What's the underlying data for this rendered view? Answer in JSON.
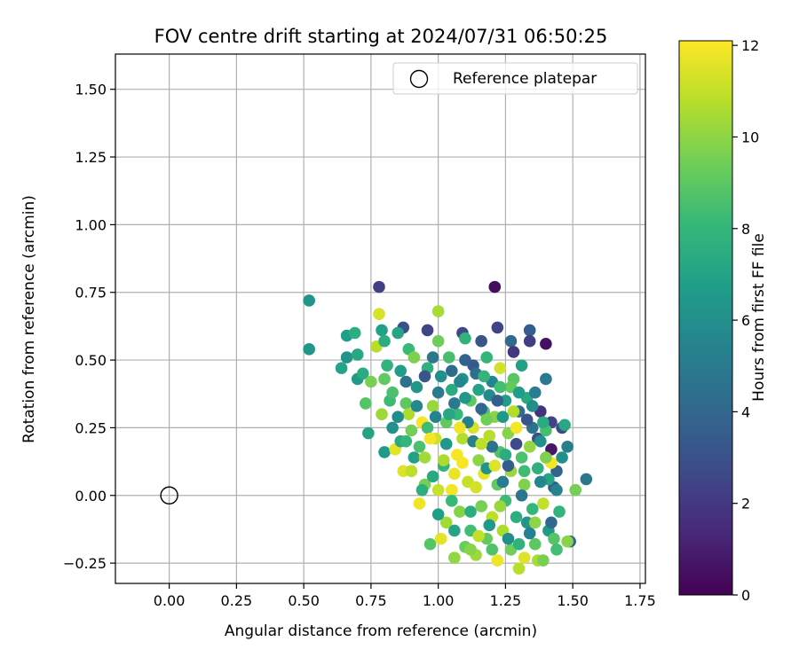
{
  "chart_data": {
    "type": "scatter",
    "title": "FOV centre drift starting at 2024/07/31 06:50:25",
    "xlabel": "Angular distance from reference (arcmin)",
    "ylabel": "Rotation from reference (arcmin)",
    "xlim": [
      -0.2,
      1.77
    ],
    "ylim": [
      -0.325,
      1.63
    ],
    "xticks": [
      "0.00",
      "0.25",
      "0.50",
      "0.75",
      "1.00",
      "1.25",
      "1.50",
      "1.75"
    ],
    "xtick_values": [
      0,
      0.25,
      0.5,
      0.75,
      1.0,
      1.25,
      1.5,
      1.75
    ],
    "yticks": [
      "−0.25",
      "0.00",
      "0.25",
      "0.50",
      "0.75",
      "1.00",
      "1.25",
      "1.50"
    ],
    "ytick_values": [
      -0.25,
      0,
      0.25,
      0.5,
      0.75,
      1.0,
      1.25,
      1.5
    ],
    "grid": true,
    "legend_position": "top-right",
    "reference_point": {
      "label": "Reference platepar",
      "x": 0.0,
      "y": 0.0
    },
    "colorbar": {
      "label": "Hours from first FF file",
      "colormap": "viridis",
      "range": [
        0,
        12.1
      ],
      "ticks": [
        "0",
        "2",
        "4",
        "6",
        "8",
        "10",
        "12"
      ],
      "tick_values": [
        0,
        2,
        4,
        6,
        8,
        10,
        12
      ]
    },
    "points": [
      {
        "x": 0.52,
        "y": 0.72,
        "h": 6.3
      },
      {
        "x": 0.52,
        "y": 0.54,
        "h": 6.4
      },
      {
        "x": 0.78,
        "y": 0.77,
        "h": 2.3
      },
      {
        "x": 1.21,
        "y": 0.77,
        "h": 0.4
      },
      {
        "x": 1.4,
        "y": 0.56,
        "h": 0.5
      },
      {
        "x": 1.42,
        "y": 0.17,
        "h": 0.8
      },
      {
        "x": 0.87,
        "y": 0.62,
        "h": 3.0
      },
      {
        "x": 0.96,
        "y": 0.61,
        "h": 2.5
      },
      {
        "x": 1.09,
        "y": 0.6,
        "h": 2.8
      },
      {
        "x": 1.16,
        "y": 0.57,
        "h": 3.2
      },
      {
        "x": 1.22,
        "y": 0.62,
        "h": 2.4
      },
      {
        "x": 1.34,
        "y": 0.61,
        "h": 3.6
      },
      {
        "x": 1.34,
        "y": 0.57,
        "h": 2.2
      },
      {
        "x": 1.27,
        "y": 0.57,
        "h": 4.2
      },
      {
        "x": 1.28,
        "y": 0.53,
        "h": 1.9
      },
      {
        "x": 1.4,
        "y": 0.43,
        "h": 4.9
      },
      {
        "x": 1.38,
        "y": 0.31,
        "h": 1.7
      },
      {
        "x": 1.42,
        "y": 0.27,
        "h": 2.4
      },
      {
        "x": 1.46,
        "y": 0.25,
        "h": 2.6
      },
      {
        "x": 1.55,
        "y": 0.06,
        "h": 4.8
      },
      {
        "x": 1.49,
        "y": -0.17,
        "h": 3.9
      },
      {
        "x": 1.43,
        "y": 0.03,
        "h": 3.5
      },
      {
        "x": 1.44,
        "y": 0.09,
        "h": 3.8
      },
      {
        "x": 1.37,
        "y": 0.21,
        "h": 2.9
      },
      {
        "x": 0.64,
        "y": 0.47,
        "h": 7.0
      },
      {
        "x": 0.66,
        "y": 0.59,
        "h": 6.8
      },
      {
        "x": 0.66,
        "y": 0.51,
        "h": 6.2
      },
      {
        "x": 0.69,
        "y": 0.6,
        "h": 7.6
      },
      {
        "x": 0.7,
        "y": 0.52,
        "h": 7.2
      },
      {
        "x": 0.7,
        "y": 0.43,
        "h": 6.6
      },
      {
        "x": 0.72,
        "y": 0.45,
        "h": 7.4
      },
      {
        "x": 0.73,
        "y": 0.34,
        "h": 8.8
      },
      {
        "x": 0.74,
        "y": 0.23,
        "h": 7.0
      },
      {
        "x": 0.75,
        "y": 0.42,
        "h": 9.6
      },
      {
        "x": 0.77,
        "y": 0.55,
        "h": 10.8
      },
      {
        "x": 0.78,
        "y": 0.67,
        "h": 11.4
      },
      {
        "x": 0.79,
        "y": 0.61,
        "h": 6.9
      },
      {
        "x": 0.8,
        "y": 0.57,
        "h": 7.5
      },
      {
        "x": 0.79,
        "y": 0.3,
        "h": 10.3
      },
      {
        "x": 0.8,
        "y": 0.16,
        "h": 6.5
      },
      {
        "x": 0.81,
        "y": 0.48,
        "h": 7.8
      },
      {
        "x": 0.82,
        "y": 0.35,
        "h": 8.2
      },
      {
        "x": 0.83,
        "y": 0.25,
        "h": 6.1
      },
      {
        "x": 0.84,
        "y": 0.17,
        "h": 11.6
      },
      {
        "x": 0.85,
        "y": 0.6,
        "h": 7.1
      },
      {
        "x": 0.86,
        "y": 0.46,
        "h": 6.7
      },
      {
        "x": 0.86,
        "y": 0.2,
        "h": 7.3
      },
      {
        "x": 0.87,
        "y": 0.09,
        "h": 11.5
      },
      {
        "x": 0.88,
        "y": 0.34,
        "h": 9.0
      },
      {
        "x": 0.89,
        "y": 0.3,
        "h": 10.6
      },
      {
        "x": 0.89,
        "y": 0.54,
        "h": 8.2
      },
      {
        "x": 0.9,
        "y": 0.09,
        "h": 10.9
      },
      {
        "x": 0.91,
        "y": 0.51,
        "h": 9.7
      },
      {
        "x": 0.92,
        "y": 0.4,
        "h": 6.4
      },
      {
        "x": 0.93,
        "y": 0.18,
        "h": 8.6
      },
      {
        "x": 0.93,
        "y": -0.03,
        "h": 11.8
      },
      {
        "x": 0.94,
        "y": 0.27,
        "h": 12.0
      },
      {
        "x": 0.95,
        "y": 0.04,
        "h": 9.5
      },
      {
        "x": 0.96,
        "y": 0.47,
        "h": 7.7
      },
      {
        "x": 0.96,
        "y": 0.25,
        "h": 8.3
      },
      {
        "x": 0.97,
        "y": -0.18,
        "h": 8.9
      },
      {
        "x": 0.98,
        "y": 0.33,
        "h": 10.2
      },
      {
        "x": 0.99,
        "y": 0.21,
        "h": 11.2
      },
      {
        "x": 1.0,
        "y": 0.68,
        "h": 10.5
      },
      {
        "x": 1.0,
        "y": 0.57,
        "h": 9.4
      },
      {
        "x": 1.01,
        "y": 0.44,
        "h": 6.0
      },
      {
        "x": 1.01,
        "y": -0.16,
        "h": 11.6
      },
      {
        "x": 1.02,
        "y": 0.11,
        "h": 7.9
      },
      {
        "x": 1.03,
        "y": 0.27,
        "h": 9.1
      },
      {
        "x": 1.03,
        "y": -0.1,
        "h": 10.4
      },
      {
        "x": 1.04,
        "y": 0.51,
        "h": 8.5
      },
      {
        "x": 1.05,
        "y": 0.39,
        "h": 7.4
      },
      {
        "x": 1.05,
        "y": 0.02,
        "h": 11.9
      },
      {
        "x": 1.06,
        "y": -0.23,
        "h": 10.1
      },
      {
        "x": 1.07,
        "y": 0.3,
        "h": 8.1
      },
      {
        "x": 1.07,
        "y": 0.15,
        "h": 12.0
      },
      {
        "x": 1.08,
        "y": -0.06,
        "h": 9.8
      },
      {
        "x": 1.09,
        "y": 0.43,
        "h": 6.2
      },
      {
        "x": 1.09,
        "y": 0.21,
        "h": 10.7
      },
      {
        "x": 1.1,
        "y": 0.58,
        "h": 7.8
      },
      {
        "x": 1.1,
        "y": -0.19,
        "h": 9.3
      },
      {
        "x": 1.11,
        "y": 0.05,
        "h": 11.1
      },
      {
        "x": 1.12,
        "y": 0.35,
        "h": 9.0
      },
      {
        "x": 1.12,
        "y": -0.13,
        "h": 8.4
      },
      {
        "x": 1.13,
        "y": 0.25,
        "h": 11.4
      },
      {
        "x": 1.13,
        "y": 0.48,
        "h": 3.4
      },
      {
        "x": 1.14,
        "y": -0.22,
        "h": 10.3
      },
      {
        "x": 1.15,
        "y": 0.13,
        "h": 10.0
      },
      {
        "x": 1.15,
        "y": 0.39,
        "h": 7.0
      },
      {
        "x": 1.16,
        "y": -0.04,
        "h": 9.6
      },
      {
        "x": 1.17,
        "y": 0.31,
        "h": 8.8
      },
      {
        "x": 1.17,
        "y": 0.08,
        "h": 11.7
      },
      {
        "x": 1.18,
        "y": 0.51,
        "h": 8.0
      },
      {
        "x": 1.18,
        "y": -0.16,
        "h": 9.2
      },
      {
        "x": 1.19,
        "y": 0.22,
        "h": 10.8
      },
      {
        "x": 1.2,
        "y": 0.42,
        "h": 5.5
      },
      {
        "x": 1.2,
        "y": -0.08,
        "h": 10.9
      },
      {
        "x": 1.21,
        "y": 0.29,
        "h": 9.9
      },
      {
        "x": 1.22,
        "y": -0.24,
        "h": 11.8
      },
      {
        "x": 1.22,
        "y": 0.04,
        "h": 9.1
      },
      {
        "x": 1.23,
        "y": 0.47,
        "h": 11.3
      },
      {
        "x": 1.23,
        "y": 0.16,
        "h": 8.7
      },
      {
        "x": 1.24,
        "y": -0.13,
        "h": 10.6
      },
      {
        "x": 1.25,
        "y": 0.35,
        "h": 6.8
      },
      {
        "x": 1.25,
        "y": -0.02,
        "h": 8.2
      },
      {
        "x": 1.26,
        "y": 0.23,
        "h": 9.8
      },
      {
        "x": 1.27,
        "y": -0.2,
        "h": 9.4
      },
      {
        "x": 1.27,
        "y": 0.09,
        "h": 10.2
      },
      {
        "x": 1.28,
        "y": 0.43,
        "h": 8.9
      },
      {
        "x": 1.29,
        "y": -0.08,
        "h": 7.6
      },
      {
        "x": 1.29,
        "y": 0.25,
        "h": 11.9
      },
      {
        "x": 1.3,
        "y": -0.27,
        "h": 10.8
      },
      {
        "x": 1.31,
        "y": 0.14,
        "h": 8.6
      },
      {
        "x": 1.31,
        "y": 0.48,
        "h": 6.9
      },
      {
        "x": 1.32,
        "y": -0.23,
        "h": 11.5
      },
      {
        "x": 1.32,
        "y": 0.04,
        "h": 9.7
      },
      {
        "x": 1.33,
        "y": -0.1,
        "h": 6.3
      },
      {
        "x": 1.33,
        "y": 0.36,
        "h": 7.3
      },
      {
        "x": 1.34,
        "y": 0.18,
        "h": 10.1
      },
      {
        "x": 1.35,
        "y": -0.05,
        "h": 8.0
      },
      {
        "x": 1.35,
        "y": 0.25,
        "h": 4.6
      },
      {
        "x": 1.36,
        "y": -0.18,
        "h": 9.0
      },
      {
        "x": 1.37,
        "y": 0.1,
        "h": 7.7
      },
      {
        "x": 1.37,
        "y": -0.24,
        "h": 10.5
      },
      {
        "x": 1.38,
        "y": 0.2,
        "h": 6.1
      },
      {
        "x": 1.39,
        "y": -0.03,
        "h": 11.0
      },
      {
        "x": 1.39,
        "y": -0.24,
        "h": 9.6
      },
      {
        "x": 1.4,
        "y": 0.24,
        "h": 8.5
      },
      {
        "x": 1.41,
        "y": 0.06,
        "h": 7.1
      },
      {
        "x": 1.41,
        "y": -0.13,
        "h": 6.6
      },
      {
        "x": 1.42,
        "y": 0.12,
        "h": 11.9
      },
      {
        "x": 1.43,
        "y": -0.16,
        "h": 8.8
      },
      {
        "x": 1.44,
        "y": 0.02,
        "h": 5.4
      },
      {
        "x": 1.45,
        "y": -0.06,
        "h": 7.9
      },
      {
        "x": 1.46,
        "y": 0.14,
        "h": 6.0
      },
      {
        "x": 1.47,
        "y": 0.26,
        "h": 7.2
      },
      {
        "x": 1.48,
        "y": -0.17,
        "h": 9.9
      },
      {
        "x": 1.48,
        "y": 0.18,
        "h": 5.2
      },
      {
        "x": 1.51,
        "y": 0.02,
        "h": 9.5
      },
      {
        "x": 1.27,
        "y": 0.4,
        "h": 9.2
      },
      {
        "x": 1.24,
        "y": 0.29,
        "h": 6.4
      },
      {
        "x": 1.19,
        "y": 0.37,
        "h": 5.8
      },
      {
        "x": 1.14,
        "y": 0.45,
        "h": 4.4
      },
      {
        "x": 1.1,
        "y": 0.5,
        "h": 3.8
      },
      {
        "x": 1.05,
        "y": 0.46,
        "h": 4.2
      },
      {
        "x": 1.0,
        "y": 0.38,
        "h": 5.0
      },
      {
        "x": 0.95,
        "y": 0.44,
        "h": 3.2
      },
      {
        "x": 0.98,
        "y": 0.51,
        "h": 4.8
      },
      {
        "x": 1.08,
        "y": 0.42,
        "h": 5.6
      },
      {
        "x": 1.16,
        "y": 0.32,
        "h": 4.0
      },
      {
        "x": 1.22,
        "y": 0.35,
        "h": 3.6
      },
      {
        "x": 1.3,
        "y": 0.31,
        "h": 4.3
      },
      {
        "x": 1.36,
        "y": 0.38,
        "h": 5.1
      },
      {
        "x": 1.33,
        "y": 0.28,
        "h": 3.1
      },
      {
        "x": 1.29,
        "y": 0.19,
        "h": 2.7
      },
      {
        "x": 1.26,
        "y": 0.11,
        "h": 3.5
      },
      {
        "x": 1.2,
        "y": 0.18,
        "h": 4.6
      },
      {
        "x": 1.13,
        "y": 0.2,
        "h": 5.2
      },
      {
        "x": 1.06,
        "y": 0.34,
        "h": 4.9
      },
      {
        "x": 0.99,
        "y": 0.29,
        "h": 5.4
      },
      {
        "x": 0.92,
        "y": 0.33,
        "h": 5.7
      },
      {
        "x": 0.88,
        "y": 0.42,
        "h": 4.5
      },
      {
        "x": 0.85,
        "y": 0.29,
        "h": 5.9
      },
      {
        "x": 1.03,
        "y": 0.19,
        "h": 6.5
      },
      {
        "x": 1.11,
        "y": 0.27,
        "h": 5.3
      },
      {
        "x": 1.18,
        "y": 0.1,
        "h": 6.2
      },
      {
        "x": 1.24,
        "y": 0.05,
        "h": 5.0
      },
      {
        "x": 1.31,
        "y": 0.0,
        "h": 4.7
      },
      {
        "x": 1.38,
        "y": 0.05,
        "h": 5.6
      },
      {
        "x": 1.42,
        "y": -0.1,
        "h": 4.1
      },
      {
        "x": 1.34,
        "y": -0.14,
        "h": 5.3
      },
      {
        "x": 1.26,
        "y": -0.16,
        "h": 6.0
      },
      {
        "x": 1.19,
        "y": -0.11,
        "h": 6.6
      },
      {
        "x": 1.12,
        "y": -0.06,
        "h": 7.5
      },
      {
        "x": 1.05,
        "y": -0.02,
        "h": 8.1
      },
      {
        "x": 0.98,
        "y": 0.07,
        "h": 7.3
      },
      {
        "x": 0.91,
        "y": 0.14,
        "h": 6.9
      },
      {
        "x": 0.83,
        "y": 0.38,
        "h": 8.6
      },
      {
        "x": 0.8,
        "y": 0.43,
        "h": 9.1
      },
      {
        "x": 0.9,
        "y": 0.24,
        "h": 9.5
      },
      {
        "x": 0.95,
        "y": 0.14,
        "h": 10.4
      },
      {
        "x": 1.0,
        "y": 0.02,
        "h": 11.1
      },
      {
        "x": 1.06,
        "y": 0.08,
        "h": 11.7
      },
      {
        "x": 1.09,
        "y": 0.12,
        "h": 12.0
      },
      {
        "x": 1.14,
        "y": 0.03,
        "h": 11.3
      },
      {
        "x": 1.16,
        "y": 0.19,
        "h": 10.9
      },
      {
        "x": 1.21,
        "y": 0.11,
        "h": 11.5
      },
      {
        "x": 1.23,
        "y": -0.04,
        "h": 10.2
      },
      {
        "x": 1.28,
        "y": 0.31,
        "h": 10.7
      },
      {
        "x": 1.08,
        "y": 0.25,
        "h": 11.8
      },
      {
        "x": 1.02,
        "y": 0.13,
        "h": 10.6
      },
      {
        "x": 0.97,
        "y": 0.21,
        "h": 11.9
      },
      {
        "x": 1.15,
        "y": -0.15,
        "h": 11.0
      },
      {
        "x": 1.18,
        "y": 0.28,
        "h": 9.4
      },
      {
        "x": 1.25,
        "y": 0.15,
        "h": 7.5
      },
      {
        "x": 1.32,
        "y": 0.09,
        "h": 8.3
      },
      {
        "x": 1.4,
        "y": 0.14,
        "h": 9.7
      },
      {
        "x": 1.44,
        "y": -0.2,
        "h": 8.4
      },
      {
        "x": 1.36,
        "y": -0.1,
        "h": 10.0
      },
      {
        "x": 1.3,
        "y": -0.18,
        "h": 7.8
      },
      {
        "x": 1.2,
        "y": -0.2,
        "h": 8.7
      },
      {
        "x": 1.12,
        "y": -0.2,
        "h": 9.9
      },
      {
        "x": 1.06,
        "y": -0.13,
        "h": 7.0
      },
      {
        "x": 1.0,
        "y": -0.07,
        "h": 6.8
      },
      {
        "x": 0.94,
        "y": 0.02,
        "h": 7.6
      },
      {
        "x": 0.88,
        "y": 0.2,
        "h": 8.0
      },
      {
        "x": 1.1,
        "y": 0.36,
        "h": 6.4
      },
      {
        "x": 1.04,
        "y": 0.3,
        "h": 7.2
      },
      {
        "x": 1.17,
        "y": 0.44,
        "h": 7.9
      },
      {
        "x": 1.23,
        "y": 0.4,
        "h": 8.4
      },
      {
        "x": 1.3,
        "y": 0.38,
        "h": 6.7
      },
      {
        "x": 1.35,
        "y": 0.33,
        "h": 5.9
      },
      {
        "x": 1.39,
        "y": 0.27,
        "h": 7.4
      }
    ]
  }
}
